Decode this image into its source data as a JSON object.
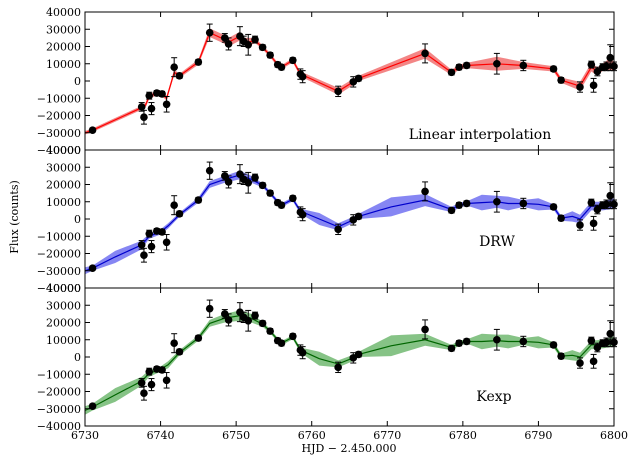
{
  "chart_data": {
    "type": "line",
    "xlabel": "HJD − 2.450.000",
    "ylabel": "Flux (counts)",
    "xlim": [
      6730,
      6800
    ],
    "ylim": [
      -40000,
      40000
    ],
    "x_ticks": [
      "6730",
      "6740",
      "6750",
      "6760",
      "6770",
      "6780",
      "6790",
      "6800"
    ],
    "y_ticks": [
      "−40000",
      "−30000",
      "−20000",
      "−10000",
      "0",
      "10000",
      "20000",
      "30000",
      "40000"
    ],
    "observations": [
      {
        "x": 6731,
        "y": -28500,
        "err": 1200
      },
      {
        "x": 6737.5,
        "y": -15000,
        "err": 2500
      },
      {
        "x": 6737.8,
        "y": -21000,
        "err": 4000
      },
      {
        "x": 6738.5,
        "y": -8500,
        "err": 2000
      },
      {
        "x": 6738.8,
        "y": -16000,
        "err": 3500
      },
      {
        "x": 6739.5,
        "y": -7000,
        "err": 1500
      },
      {
        "x": 6740.2,
        "y": -7500,
        "err": 1500
      },
      {
        "x": 6740.8,
        "y": -13500,
        "err": 4500
      },
      {
        "x": 6741.8,
        "y": 8000,
        "err": 5500
      },
      {
        "x": 6742.5,
        "y": 3000,
        "err": 1500
      },
      {
        "x": 6745,
        "y": 11000,
        "err": 1500
      },
      {
        "x": 6746.5,
        "y": 28000,
        "err": 5000
      },
      {
        "x": 6748.5,
        "y": 25000,
        "err": 2500
      },
      {
        "x": 6749,
        "y": 21500,
        "err": 3500
      },
      {
        "x": 6750.5,
        "y": 26000,
        "err": 5500
      },
      {
        "x": 6751,
        "y": 23000,
        "err": 3000
      },
      {
        "x": 6751.6,
        "y": 21000,
        "err": 6000
      },
      {
        "x": 6752.5,
        "y": 24000,
        "err": 2000
      },
      {
        "x": 6753.5,
        "y": 19500,
        "err": 1500
      },
      {
        "x": 6754.5,
        "y": 15000,
        "err": 1500
      },
      {
        "x": 6755.5,
        "y": 9500,
        "err": 1500
      },
      {
        "x": 6756,
        "y": 8000,
        "err": 1500
      },
      {
        "x": 6757.5,
        "y": 12000,
        "err": 1500
      },
      {
        "x": 6758.5,
        "y": 4000,
        "err": 3000
      },
      {
        "x": 6758.8,
        "y": 2500,
        "err": 3500
      },
      {
        "x": 6763.5,
        "y": -6000,
        "err": 3000
      },
      {
        "x": 6765.5,
        "y": -500,
        "err": 3000
      },
      {
        "x": 6766.2,
        "y": 1500,
        "err": 1500
      },
      {
        "x": 6775,
        "y": 16000,
        "err": 5500
      },
      {
        "x": 6778.5,
        "y": 5000,
        "err": 1500
      },
      {
        "x": 6779.5,
        "y": 8000,
        "err": 1500
      },
      {
        "x": 6780.5,
        "y": 9000,
        "err": 1500
      },
      {
        "x": 6784.5,
        "y": 10000,
        "err": 6000
      },
      {
        "x": 6788,
        "y": 9000,
        "err": 3000
      },
      {
        "x": 6792,
        "y": 7000,
        "err": 1500
      },
      {
        "x": 6793,
        "y": 500,
        "err": 1500
      },
      {
        "x": 6795.5,
        "y": -3500,
        "err": 3000
      },
      {
        "x": 6797,
        "y": 9500,
        "err": 2000
      },
      {
        "x": 6797.3,
        "y": -2500,
        "err": 4000
      },
      {
        "x": 6797.8,
        "y": 5500,
        "err": 2500
      },
      {
        "x": 6798.5,
        "y": 8000,
        "err": 2000
      },
      {
        "x": 6799,
        "y": 8500,
        "err": 2500
      },
      {
        "x": 6799.5,
        "y": 13500,
        "err": 7500
      },
      {
        "x": 6800,
        "y": 8500,
        "err": 2500
      }
    ],
    "panels": [
      {
        "label": "Linear interpolation",
        "color": "#ff0000",
        "fill": "#f28080",
        "model": [
          {
            "x": 6730,
            "y": -30000,
            "w": 1000
          },
          {
            "x": 6731,
            "y": -28500,
            "w": 1000
          },
          {
            "x": 6737.5,
            "y": -15500,
            "w": 1200
          },
          {
            "x": 6738,
            "y": -14000,
            "w": 1500
          },
          {
            "x": 6738.5,
            "y": -9000,
            "w": 1500
          },
          {
            "x": 6739.5,
            "y": -7000,
            "w": 1200
          },
          {
            "x": 6740.2,
            "y": -7500,
            "w": 1200
          },
          {
            "x": 6740.8,
            "y": -10000,
            "w": 1500
          },
          {
            "x": 6741.8,
            "y": 5000,
            "w": 1500
          },
          {
            "x": 6742.5,
            "y": 3000,
            "w": 1200
          },
          {
            "x": 6745,
            "y": 11000,
            "w": 1500
          },
          {
            "x": 6746.5,
            "y": 28000,
            "w": 2500
          },
          {
            "x": 6748.5,
            "y": 24000,
            "w": 2500
          },
          {
            "x": 6749,
            "y": 22500,
            "w": 2500
          },
          {
            "x": 6750.5,
            "y": 26000,
            "w": 2500
          },
          {
            "x": 6751,
            "y": 23000,
            "w": 2000
          },
          {
            "x": 6751.6,
            "y": 22500,
            "w": 2500
          },
          {
            "x": 6752.5,
            "y": 23500,
            "w": 1500
          },
          {
            "x": 6753.5,
            "y": 19500,
            "w": 1200
          },
          {
            "x": 6754.5,
            "y": 15000,
            "w": 1200
          },
          {
            "x": 6755.5,
            "y": 9500,
            "w": 1200
          },
          {
            "x": 6756,
            "y": 8000,
            "w": 1200
          },
          {
            "x": 6757.5,
            "y": 12000,
            "w": 1200
          },
          {
            "x": 6758.5,
            "y": 4000,
            "w": 1500
          },
          {
            "x": 6758.8,
            "y": 3500,
            "w": 1500
          },
          {
            "x": 6763.5,
            "y": -6000,
            "w": 2000
          },
          {
            "x": 6765.5,
            "y": -500,
            "w": 1800
          },
          {
            "x": 6766.2,
            "y": 1500,
            "w": 1500
          },
          {
            "x": 6775,
            "y": 16000,
            "w": 3000
          },
          {
            "x": 6778.5,
            "y": 5000,
            "w": 1500
          },
          {
            "x": 6779.5,
            "y": 8000,
            "w": 1500
          },
          {
            "x": 6780.5,
            "y": 9000,
            "w": 1500
          },
          {
            "x": 6784.5,
            "y": 10000,
            "w": 4000
          },
          {
            "x": 6788,
            "y": 9000,
            "w": 2000
          },
          {
            "x": 6792,
            "y": 7000,
            "w": 1500
          },
          {
            "x": 6793,
            "y": 500,
            "w": 1500
          },
          {
            "x": 6795.5,
            "y": -3000,
            "w": 2500
          },
          {
            "x": 6797,
            "y": 8000,
            "w": 2500
          },
          {
            "x": 6797.8,
            "y": 5500,
            "w": 2500
          },
          {
            "x": 6798.5,
            "y": 8000,
            "w": 2000
          },
          {
            "x": 6799.5,
            "y": 10000,
            "w": 3500
          },
          {
            "x": 6800,
            "y": 8500,
            "w": 2500
          }
        ]
      },
      {
        "label": "DRW",
        "color": "#0000cc",
        "fill": "#7f7ff2",
        "model": [
          {
            "x": 6730,
            "y": -30000,
            "w": 2000
          },
          {
            "x": 6731,
            "y": -28500,
            "w": 1500
          },
          {
            "x": 6734,
            "y": -22000,
            "w": 3500
          },
          {
            "x": 6737.5,
            "y": -15000,
            "w": 2500
          },
          {
            "x": 6738.5,
            "y": -10000,
            "w": 1500
          },
          {
            "x": 6740,
            "y": -7500,
            "w": 1500
          },
          {
            "x": 6741,
            "y": -4000,
            "w": 1500
          },
          {
            "x": 6742.5,
            "y": 2500,
            "w": 1200
          },
          {
            "x": 6745,
            "y": 11000,
            "w": 1500
          },
          {
            "x": 6746.5,
            "y": 20000,
            "w": 2000
          },
          {
            "x": 6748.5,
            "y": 23000,
            "w": 2000
          },
          {
            "x": 6750.5,
            "y": 25500,
            "w": 2500
          },
          {
            "x": 6752,
            "y": 23000,
            "w": 2000
          },
          {
            "x": 6753.5,
            "y": 19500,
            "w": 1200
          },
          {
            "x": 6754.5,
            "y": 15000,
            "w": 1200
          },
          {
            "x": 6755.5,
            "y": 10000,
            "w": 1200
          },
          {
            "x": 6756,
            "y": 8000,
            "w": 1200
          },
          {
            "x": 6757.5,
            "y": 11500,
            "w": 1200
          },
          {
            "x": 6758.5,
            "y": 4500,
            "w": 1500
          },
          {
            "x": 6761,
            "y": 0,
            "w": 3500
          },
          {
            "x": 6763.5,
            "y": -4500,
            "w": 2000
          },
          {
            "x": 6765.5,
            "y": -500,
            "w": 1800
          },
          {
            "x": 6766.2,
            "y": 1500,
            "w": 1500
          },
          {
            "x": 6770.5,
            "y": 7000,
            "w": 5500
          },
          {
            "x": 6775,
            "y": 11000,
            "w": 3500
          },
          {
            "x": 6778.5,
            "y": 5500,
            "w": 1500
          },
          {
            "x": 6779.5,
            "y": 8000,
            "w": 1500
          },
          {
            "x": 6780.5,
            "y": 9000,
            "w": 1200
          },
          {
            "x": 6782.5,
            "y": 9500,
            "w": 4500
          },
          {
            "x": 6784.5,
            "y": 10000,
            "w": 3500
          },
          {
            "x": 6786,
            "y": 9000,
            "w": 4000
          },
          {
            "x": 6788,
            "y": 9000,
            "w": 2000
          },
          {
            "x": 6790,
            "y": 8500,
            "w": 3500
          },
          {
            "x": 6792,
            "y": 7000,
            "w": 1500
          },
          {
            "x": 6793,
            "y": 500,
            "w": 1500
          },
          {
            "x": 6794.5,
            "y": 1500,
            "w": 3000
          },
          {
            "x": 6795.5,
            "y": 0,
            "w": 2500
          },
          {
            "x": 6797,
            "y": 7500,
            "w": 2500
          },
          {
            "x": 6798.5,
            "y": 7500,
            "w": 2500
          },
          {
            "x": 6800,
            "y": 9000,
            "w": 3000
          }
        ]
      },
      {
        "label": "Kexp",
        "color": "#006600",
        "fill": "#80c080",
        "model": [
          {
            "x": 6730,
            "y": -31000,
            "w": 2500
          },
          {
            "x": 6731,
            "y": -29000,
            "w": 2000
          },
          {
            "x": 6734,
            "y": -22000,
            "w": 4000
          },
          {
            "x": 6737.5,
            "y": -14000,
            "w": 2500
          },
          {
            "x": 6738.5,
            "y": -9500,
            "w": 2000
          },
          {
            "x": 6740,
            "y": -7000,
            "w": 1500
          },
          {
            "x": 6741,
            "y": -4500,
            "w": 2000
          },
          {
            "x": 6742.5,
            "y": 2500,
            "w": 1500
          },
          {
            "x": 6745,
            "y": 11000,
            "w": 1500
          },
          {
            "x": 6746.5,
            "y": 19500,
            "w": 2000
          },
          {
            "x": 6748.5,
            "y": 22500,
            "w": 2500
          },
          {
            "x": 6750.5,
            "y": 24000,
            "w": 3000
          },
          {
            "x": 6752,
            "y": 22500,
            "w": 2500
          },
          {
            "x": 6753.5,
            "y": 19000,
            "w": 1500
          },
          {
            "x": 6754.5,
            "y": 15000,
            "w": 1200
          },
          {
            "x": 6755.5,
            "y": 10000,
            "w": 1200
          },
          {
            "x": 6756,
            "y": 8000,
            "w": 1200
          },
          {
            "x": 6757.5,
            "y": 11500,
            "w": 1200
          },
          {
            "x": 6758.5,
            "y": 4000,
            "w": 1500
          },
          {
            "x": 6761,
            "y": -1000,
            "w": 4000
          },
          {
            "x": 6763.5,
            "y": -4000,
            "w": 2000
          },
          {
            "x": 6765.5,
            "y": -500,
            "w": 1800
          },
          {
            "x": 6766.2,
            "y": 1500,
            "w": 1500
          },
          {
            "x": 6770.5,
            "y": 6500,
            "w": 6000
          },
          {
            "x": 6775,
            "y": 10000,
            "w": 3500
          },
          {
            "x": 6778.5,
            "y": 5500,
            "w": 1500
          },
          {
            "x": 6779.5,
            "y": 8000,
            "w": 1500
          },
          {
            "x": 6780.5,
            "y": 9000,
            "w": 1200
          },
          {
            "x": 6782.5,
            "y": 9000,
            "w": 4500
          },
          {
            "x": 6784.5,
            "y": 9500,
            "w": 3500
          },
          {
            "x": 6786,
            "y": 9000,
            "w": 4000
          },
          {
            "x": 6788,
            "y": 9000,
            "w": 2000
          },
          {
            "x": 6790,
            "y": 8500,
            "w": 3500
          },
          {
            "x": 6792,
            "y": 7000,
            "w": 1500
          },
          {
            "x": 6793,
            "y": 500,
            "w": 1500
          },
          {
            "x": 6794.5,
            "y": 1000,
            "w": 3000
          },
          {
            "x": 6795.5,
            "y": 0,
            "w": 2500
          },
          {
            "x": 6797,
            "y": 7000,
            "w": 2500
          },
          {
            "x": 6798.5,
            "y": 7500,
            "w": 2500
          },
          {
            "x": 6800,
            "y": 9000,
            "w": 3000
          }
        ]
      }
    ]
  }
}
